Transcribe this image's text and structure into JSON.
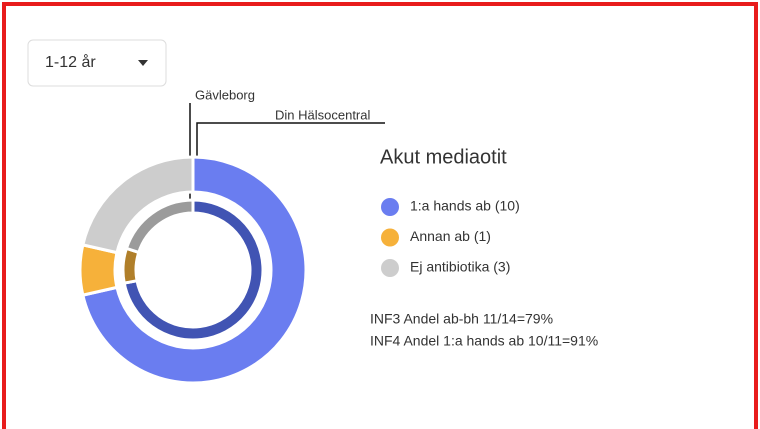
{
  "dropdown": "1-12 år",
  "chart_data": {
    "type": "donut",
    "title": "Akut mediaotit",
    "categories": [
      "1:a hands ab (10)",
      "Annan ab (1)",
      "Ej antibiotika (3)"
    ],
    "legend_colors": [
      "#6a7df0",
      "#f6b13a",
      "#cdcdcd"
    ],
    "series": [
      {
        "name": "Din Hälsocentral",
        "values": [
          10,
          1,
          3
        ],
        "colors": [
          "#6a7df0",
          "#f6b13a",
          "#cdcdcd"
        ]
      },
      {
        "name": "Gävleborg",
        "values": [
          72,
          8,
          20
        ],
        "colors": [
          "#4154b3",
          "#b07f2a",
          "#9b9b9b"
        ]
      }
    ],
    "annotations": [
      "INF3 Andel ab-bh 11/14=79%",
      "INF4 Andel 1:a hands ab 10/11=91%"
    ]
  }
}
